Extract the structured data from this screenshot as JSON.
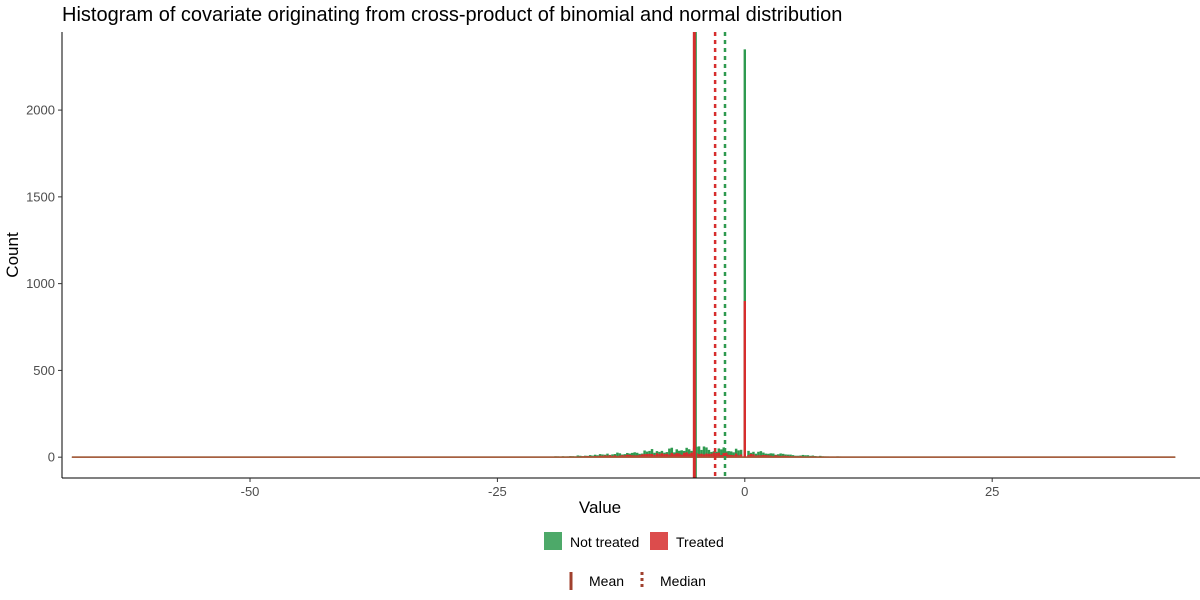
{
  "chart_data": {
    "type": "bar",
    "title": "Histogram of covariate originating from cross-product of binomial and normal distribution",
    "xlabel": "Value",
    "ylabel": "Count",
    "xlim": [
      -69,
      46
    ],
    "ylim": [
      -120,
      2450
    ],
    "x_ticks": [
      -50,
      -25,
      0,
      25
    ],
    "x_tick_labels": [
      "-50",
      "-25",
      "0",
      "25"
    ],
    "y_ticks": [
      0,
      500,
      1000,
      1500,
      2000
    ],
    "y_tick_labels": [
      "0",
      "500",
      "1000",
      "1500",
      "2000"
    ],
    "grid": false,
    "legend_position": "bottom",
    "data_range": [
      -68,
      43.5
    ],
    "series": [
      {
        "name": "Not treated",
        "color": "#2e9a4f",
        "spike": {
          "x": 0,
          "count": 2350
        },
        "approx_peak_count": 45,
        "approx_center": -5,
        "mean": -5,
        "median": -2
      },
      {
        "name": "Treated",
        "color": "#d62d2d",
        "spike": {
          "x": 0,
          "count": 900
        },
        "approx_peak_count": 20,
        "approx_center": -5,
        "mean": -5,
        "median": -3
      }
    ],
    "legend": {
      "fill_entries": [
        {
          "label": "Not treated",
          "color": "#2e9a4f"
        },
        {
          "label": "Treated",
          "color": "#d62d2d"
        }
      ],
      "line_entries": [
        {
          "label": "Mean",
          "style": "solid",
          "color": "#a0402e"
        },
        {
          "label": "Median",
          "style": "dotted",
          "color": "#a0402e"
        }
      ]
    }
  }
}
